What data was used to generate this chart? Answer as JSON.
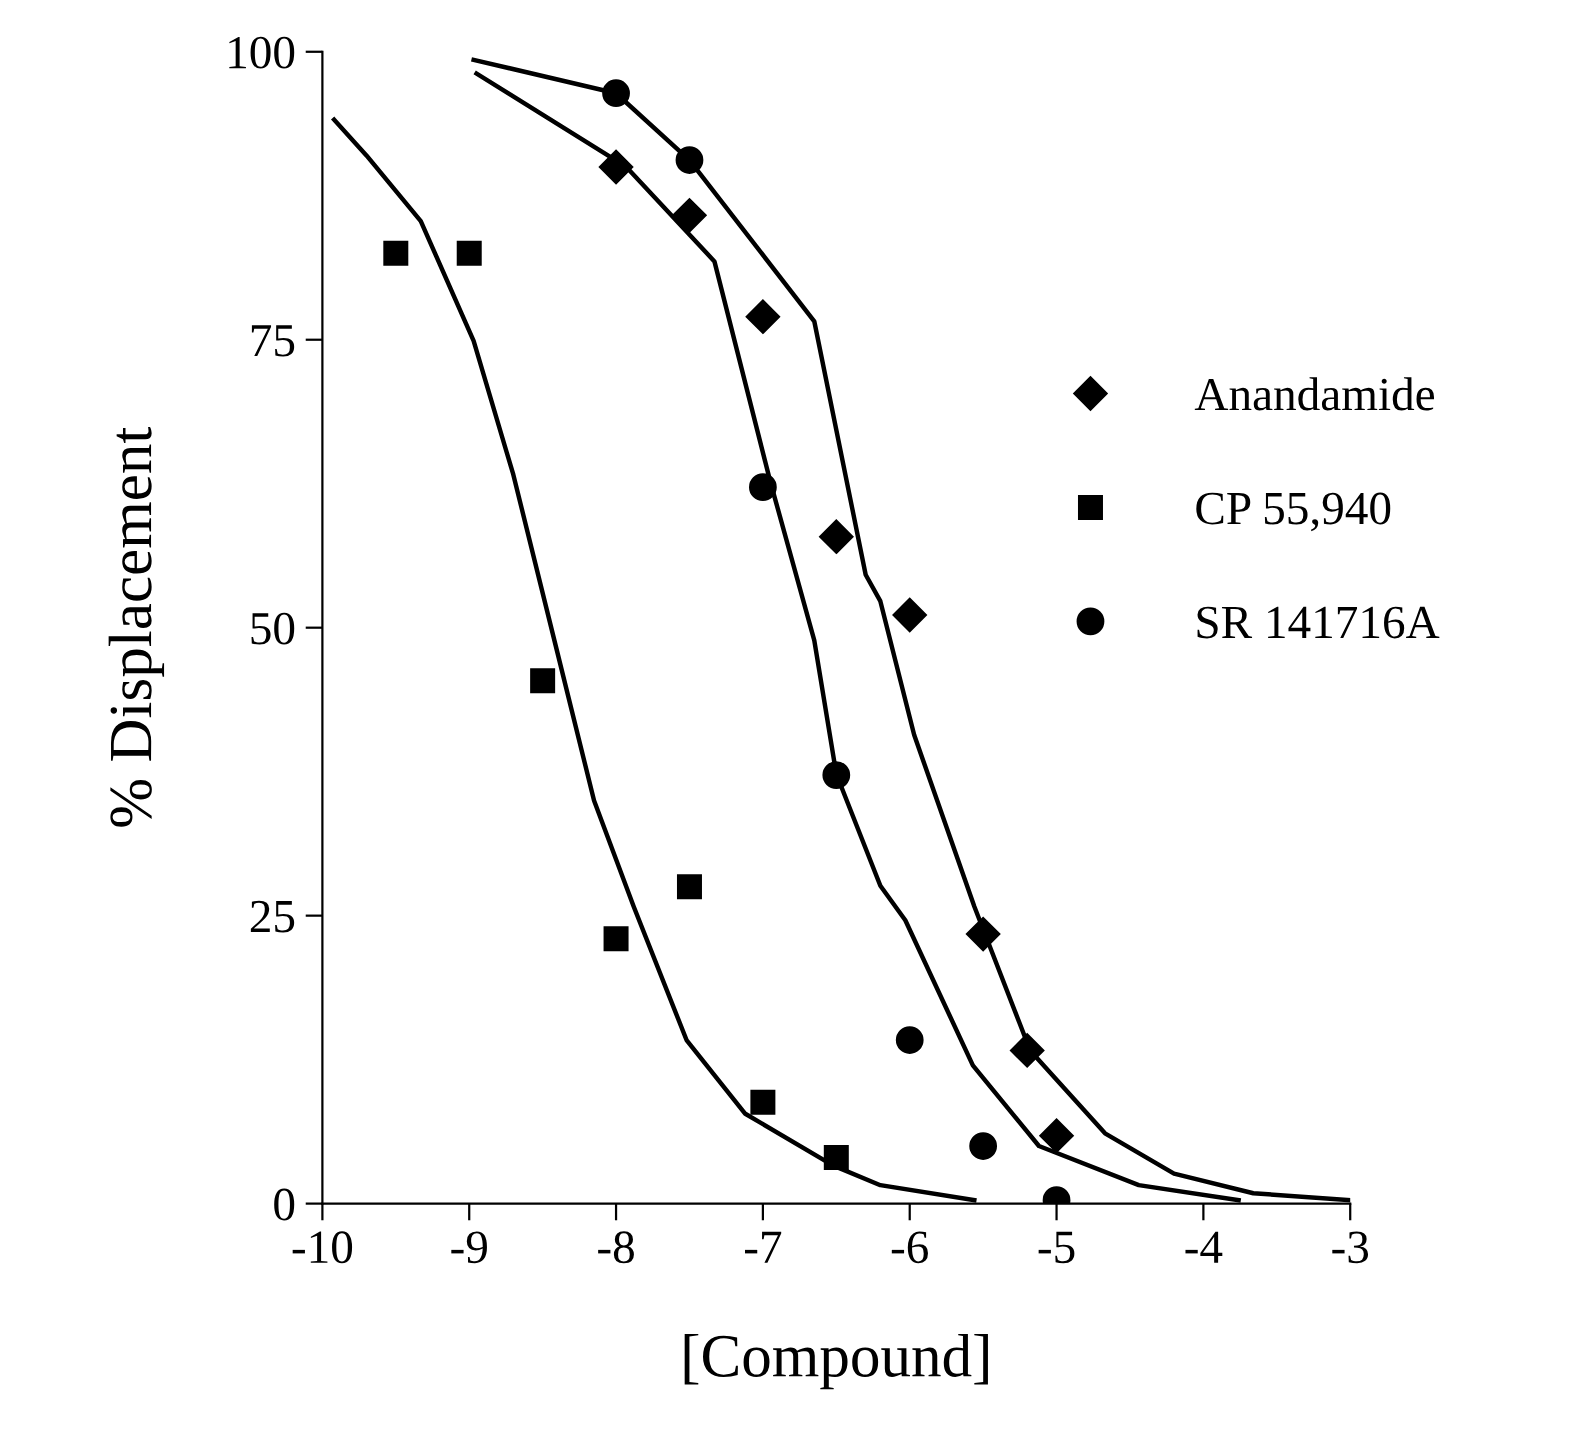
{
  "chart_data": {
    "type": "scatter",
    "xlabel": "[Compound]",
    "ylabel": "% Displacement",
    "xlim": [
      -10,
      -3
    ],
    "ylim": [
      0,
      100
    ],
    "xticks": [
      -10,
      -9,
      -8,
      -7,
      -6,
      -5,
      -4,
      -3
    ],
    "yticks": [
      0,
      25,
      50,
      75,
      100
    ],
    "grid": false,
    "legend": "right",
    "series": [
      {
        "name": "Anandamide",
        "color": "#000000",
        "marker": "diamond",
        "x": [
          -8,
          -7.5,
          -7,
          -6.5,
          -6,
          -5.5,
          -5.2,
          -5
        ],
        "values": [
          90.0,
          85.8,
          77.0,
          57.9,
          51.1,
          23.4,
          13.3,
          5.9
        ]
      },
      {
        "name": "CP 55,940",
        "color": "#000000",
        "marker": "square",
        "x": [
          -9.5,
          -9,
          -8.5,
          -8,
          -7.5,
          -7,
          -6.5
        ],
        "values": [
          82.5,
          82.5,
          45.4,
          23.0,
          27.5,
          8.8,
          4.0
        ]
      },
      {
        "name": "SR 141716A",
        "color": "#000000",
        "marker": "circle",
        "x": [
          -8,
          -7.5,
          -7,
          -6.5,
          -6,
          -5.5,
          -5
        ],
        "values": [
          96.4,
          90.6,
          62.2,
          37.2,
          14.2,
          5.0,
          0.3
        ]
      },
      {
        "type": "line",
        "color": "#000000",
        "marker": "none",
        "line_style": "solid",
        "x": [
          -8.97,
          -8,
          -7.5,
          -6.65,
          -6.3,
          -6.2,
          -5.97,
          -5.56,
          -5.18,
          -4.67,
          -4.2,
          -3.66,
          -3
        ],
        "values": [
          99.3,
          96.4,
          90.6,
          76.6,
          54.6,
          52.3,
          40.7,
          25.8,
          13.3,
          6.1,
          2.6,
          0.9,
          0.3
        ]
      },
      {
        "type": "line",
        "color": "#000000",
        "marker": "none",
        "line_style": "solid",
        "x": [
          -8.95,
          -7.93,
          -7.33,
          -6.95,
          -6.65,
          -6.5,
          -6.2,
          -6.03,
          -5.57,
          -5.12,
          -4.44,
          -3.76
        ],
        "values": [
          98.1,
          90.0,
          81.8,
          62.7,
          48.9,
          37.3,
          27.6,
          24.6,
          12.0,
          5.0,
          1.6,
          0.3
        ]
      },
      {
        "type": "line",
        "color": "#000000",
        "marker": "none",
        "line_style": "solid",
        "x": [
          -9.92,
          -9.7,
          -9.33,
          -8.97,
          -8.7,
          -8.42,
          -8.15,
          -7.88,
          -7.52,
          -7.12,
          -6.52,
          -6.2,
          -5.56
        ],
        "values": [
          94.1,
          91.0,
          85.3,
          74.9,
          63.3,
          48.9,
          35.0,
          25.8,
          14.2,
          7.8,
          3.3,
          1.6,
          0.3
        ]
      }
    ]
  }
}
